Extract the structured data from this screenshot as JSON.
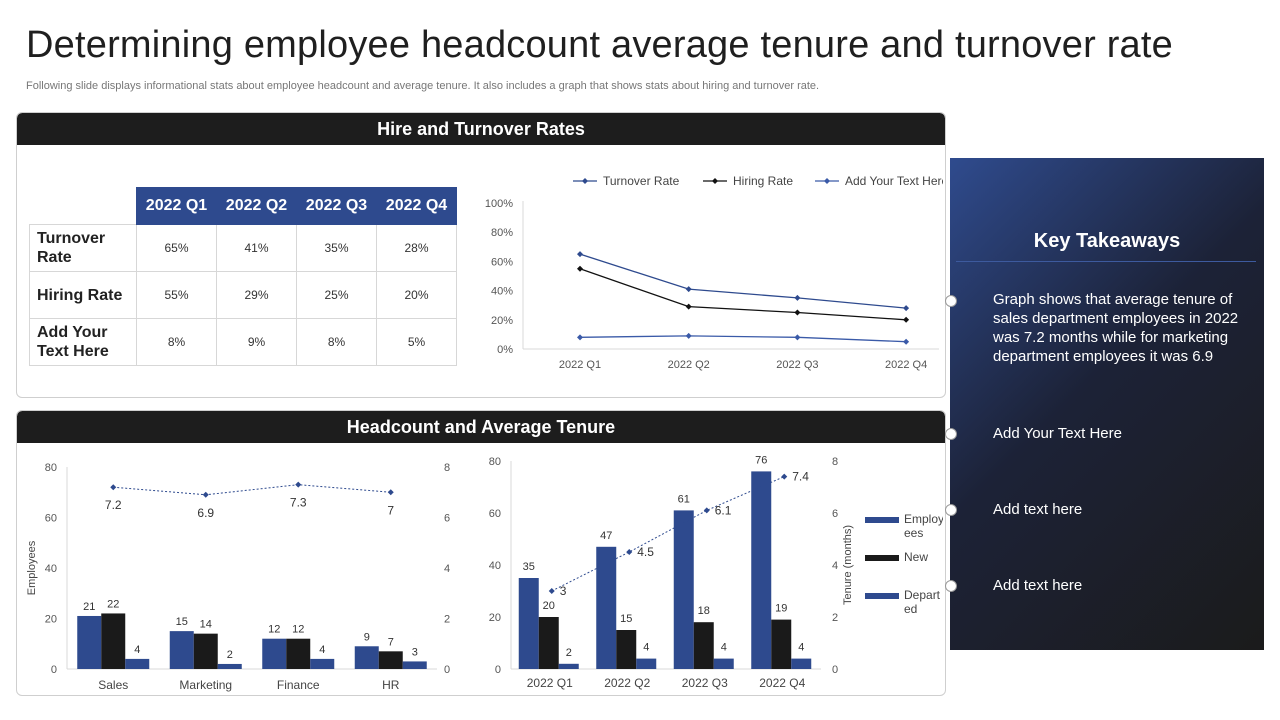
{
  "page": {
    "title": "Determining employee headcount average tenure and turnover rate",
    "subtitle": "Following slide displays informational stats about employee headcount and average tenure. It also includes a graph that shows stats about hiring and turnover rate."
  },
  "panels": {
    "top_title": "Hire and Turnover Rates",
    "bottom_title": "Headcount and Average Tenure"
  },
  "rates_table": {
    "columns": [
      "2022 Q1",
      "2022 Q2",
      "2022 Q3",
      "2022 Q4"
    ],
    "rows": [
      {
        "label_lines": [
          "Turnover",
          "Rate"
        ],
        "values": [
          "65%",
          "41%",
          "35%",
          "28%"
        ]
      },
      {
        "label_lines": [
          "Hiring Rate"
        ],
        "values": [
          "55%",
          "29%",
          "25%",
          "20%"
        ]
      },
      {
        "label_lines": [
          "Add Your",
          "Text Here"
        ],
        "values": [
          "8%",
          "9%",
          "8%",
          "5%"
        ]
      }
    ]
  },
  "takeaways": {
    "title": "Key Takeaways",
    "items": [
      "Graph shows that average tenure of sales department employees in 2022 was 7.2 months while for marketing department employees it was 6.9",
      "Add Your Text Here",
      "Add text here",
      "Add text here"
    ]
  },
  "chart_data": [
    {
      "type": "line",
      "title": "",
      "x": [
        "2022 Q1",
        "2022 Q2",
        "2022 Q3",
        "2022 Q4"
      ],
      "ylim": [
        0,
        100
      ],
      "yticks": [
        "0%",
        "20%",
        "40%",
        "60%",
        "80%",
        "100%"
      ],
      "legend_position": "top",
      "series": [
        {
          "name": "Turnover Rate",
          "values": [
            65,
            41,
            35,
            28
          ],
          "color": "#2e4a8e"
        },
        {
          "name": "Hiring Rate",
          "values": [
            55,
            29,
            25,
            20
          ],
          "color": "#111111"
        },
        {
          "name": "Add Your Text Here",
          "values": [
            8,
            9,
            8,
            5
          ],
          "color": "#3a5aa8"
        }
      ]
    },
    {
      "type": "bar",
      "title": "",
      "categories": [
        "Sales",
        "Marketing",
        "Finance",
        "HR"
      ],
      "ylabel": "Employees",
      "ylim": [
        0,
        80
      ],
      "yticks": [
        "0",
        "20",
        "40",
        "60",
        "80"
      ],
      "y2lim": [
        0,
        8
      ],
      "y2ticks": [
        "0",
        "2",
        "4",
        "6",
        "8"
      ],
      "series": [
        {
          "values": [
            21,
            15,
            12,
            9
          ],
          "labels": [
            "21",
            "15",
            "12",
            "9"
          ],
          "color": "#2e4a8e"
        },
        {
          "values": [
            22,
            14,
            12,
            7
          ],
          "labels": [
            "22",
            "14",
            "12",
            "7"
          ],
          "color": "#1a1a1a"
        },
        {
          "values": [
            4,
            2,
            4,
            3
          ],
          "labels": [
            "4",
            "2",
            "4",
            "3"
          ],
          "color": "#2e4a8e"
        }
      ],
      "line": {
        "axis": "secondary",
        "values": [
          7.2,
          6.9,
          7.3,
          7
        ],
        "labels": [
          "7.2",
          "6.9",
          "7.3",
          "7"
        ],
        "color": "#2e4a8e"
      }
    },
    {
      "type": "bar",
      "title": "",
      "categories": [
        "2022 Q1",
        "2022 Q2",
        "2022 Q3",
        "2022 Q4"
      ],
      "y2label": "Tenure (months)",
      "ylim": [
        0,
        80
      ],
      "yticks": [
        "0",
        "20",
        "40",
        "60",
        "80"
      ],
      "y2lim": [
        0,
        8
      ],
      "y2ticks": [
        "0",
        "2",
        "4",
        "6",
        "8"
      ],
      "legend_position": "right",
      "series": [
        {
          "name": "Employees",
          "values": [
            35,
            47,
            61,
            76
          ],
          "labels": [
            "35",
            "47",
            "61",
            "76"
          ],
          "color": "#2e4a8e"
        },
        {
          "name": "New",
          "values": [
            20,
            15,
            18,
            19
          ],
          "labels": [
            "20",
            "15",
            "18",
            "19"
          ],
          "color": "#1a1a1a"
        },
        {
          "name": "Departed",
          "values": [
            2,
            4,
            4,
            4
          ],
          "labels": [
            "2",
            "4",
            "4",
            "4"
          ],
          "color": "#2e4a8e"
        }
      ],
      "line": {
        "axis": "secondary",
        "values": [
          3,
          4.5,
          6.1,
          7.4
        ],
        "labels": [
          "3",
          "4.5",
          "6.1",
          "7.4"
        ],
        "color": "#2e4a8e"
      }
    }
  ]
}
